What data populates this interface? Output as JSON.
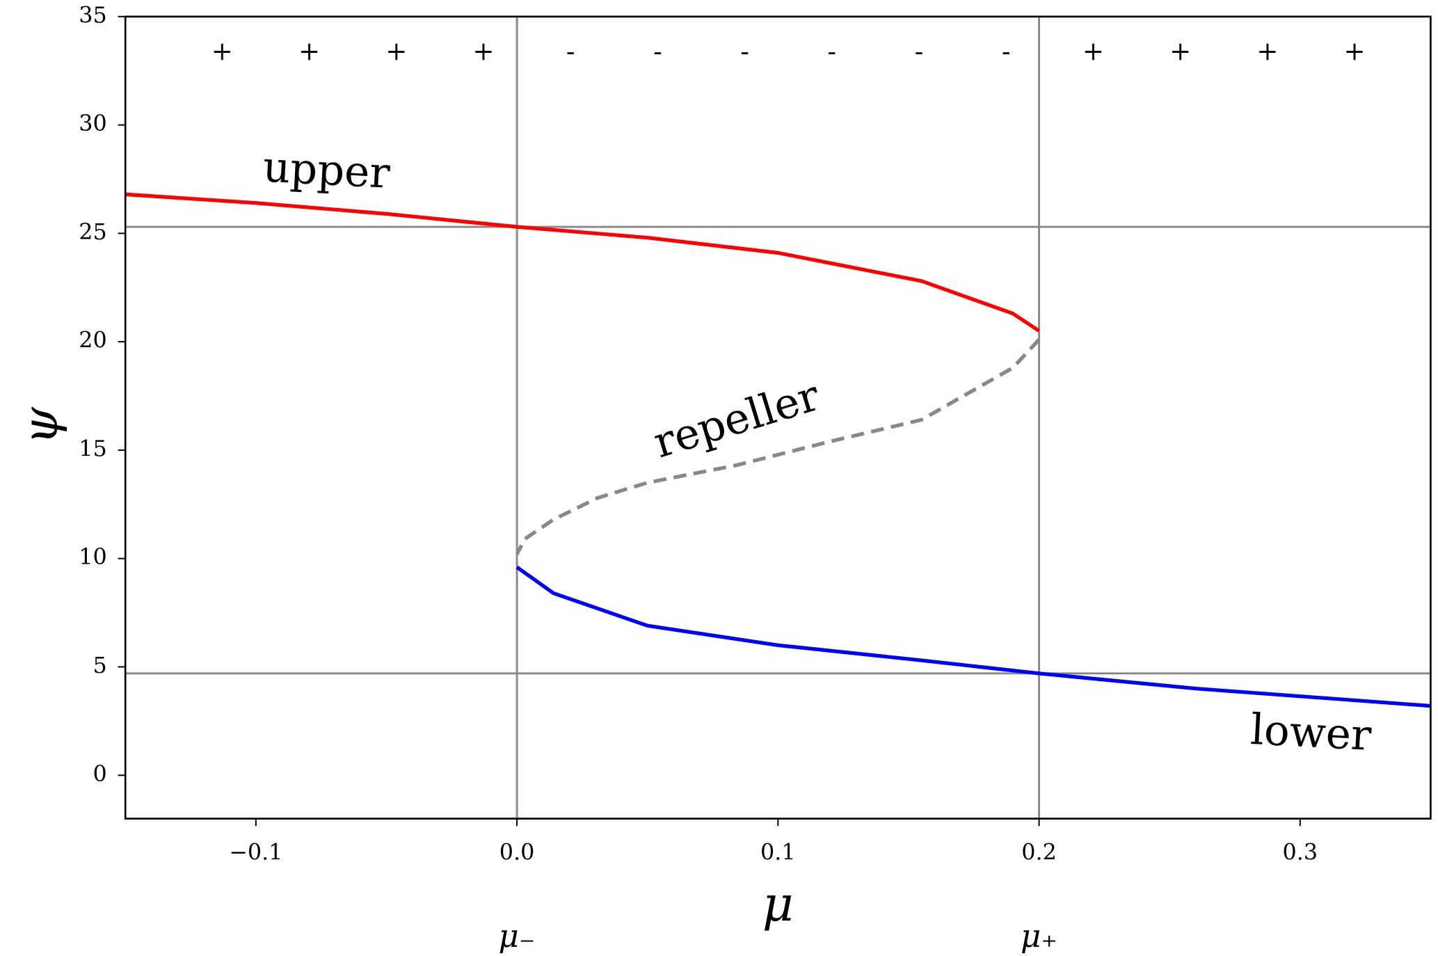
{
  "chart_data": {
    "type": "line",
    "xlabel": "μ",
    "ylabel": "ψ",
    "xlim": [
      -0.15,
      0.35
    ],
    "ylim": [
      -2,
      35
    ],
    "xticks": [
      {
        "value": -0.1,
        "label": "−0.1"
      },
      {
        "value": 0,
        "label": "0.0"
      },
      0.1,
      0.2,
      0.3
    ],
    "yticks": [
      0,
      5,
      10,
      15,
      20,
      25,
      30,
      35
    ],
    "series": [
      {
        "name": "upper",
        "color": "#ff0000",
        "style": "solid",
        "x": [
          -0.15,
          -0.1,
          -0.05,
          0,
          0.05,
          0.1,
          0.155,
          0.19,
          0.2
        ],
        "values": [
          26.8,
          26.4,
          25.9,
          25.3,
          24.8,
          24.1,
          22.8,
          21.3,
          20.5
        ]
      },
      {
        "name": "repeller",
        "color": "#888888",
        "style": "dashed",
        "x": [
          0.2,
          0.19,
          0.155,
          0.12,
          0.084,
          0.05,
          0.031,
          0.014,
          0.003,
          0
        ],
        "values": [
          20.1,
          18.8,
          16.4,
          15.4,
          14.3,
          13.5,
          12.8,
          11.8,
          10.9,
          10.2
        ]
      },
      {
        "name": "lower",
        "color": "#0000ff",
        "style": "solid",
        "x": [
          0,
          0.014,
          0.05,
          0.1,
          0.155,
          0.2,
          0.26,
          0.35
        ],
        "values": [
          9.6,
          8.4,
          6.9,
          6.0,
          5.3,
          4.7,
          4.0,
          3.2
        ]
      }
    ],
    "vlines": [
      0,
      0.2
    ],
    "hlines": [
      25.3,
      4.7
    ],
    "refline_color": "#888888",
    "vline_labels": [
      "μ₋",
      "μ₊"
    ],
    "signs": [
      "+",
      "+",
      "+",
      "+",
      "-",
      "-",
      "-",
      "-",
      "-",
      "-",
      "+",
      "+",
      "+",
      "+"
    ]
  }
}
